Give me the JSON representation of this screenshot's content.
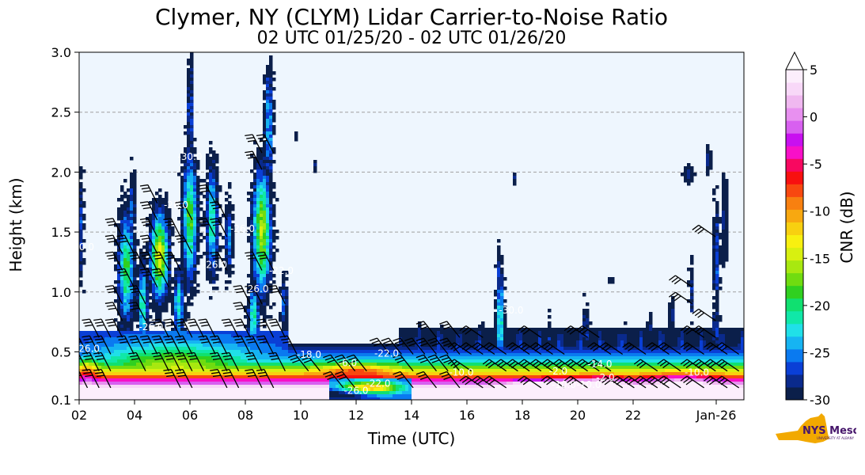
{
  "chart_data": {
    "type": "heatmap",
    "title": "Clymer, NY (CLYM) Lidar Carrier-to-Noise Ratio",
    "subtitle": "02 UTC 01/25/20 - 02 UTC 01/26/20",
    "xlabel": "Time (UTC)",
    "ylabel": "Height (km)",
    "xlim": [
      2,
      26
    ],
    "ylim": [
      0.1,
      3.0
    ],
    "x_ticks": [
      {
        "value": 2,
        "label": "02"
      },
      {
        "value": 4,
        "label": "04"
      },
      {
        "value": 6,
        "label": "06"
      },
      {
        "value": 8,
        "label": "08"
      },
      {
        "value": 10,
        "label": "10"
      },
      {
        "value": 12,
        "label": "12"
      },
      {
        "value": 14,
        "label": "14"
      },
      {
        "value": 16,
        "label": "16"
      },
      {
        "value": 18,
        "label": "18"
      },
      {
        "value": 20,
        "label": "20"
      },
      {
        "value": 22,
        "label": "22"
      },
      {
        "value": 25,
        "label": "Jan-26"
      }
    ],
    "y_ticks": [
      {
        "value": 0.1,
        "label": "0.1"
      },
      {
        "value": 0.5,
        "label": "0.5"
      },
      {
        "value": 1.0,
        "label": "1.0"
      },
      {
        "value": 1.5,
        "label": "1.5"
      },
      {
        "value": 2.0,
        "label": "2.0"
      },
      {
        "value": 2.5,
        "label": "2.5"
      },
      {
        "value": 3.0,
        "label": "3.0"
      }
    ],
    "grid": "horizontal dashed",
    "colorbar": {
      "label": "CNR (dB)",
      "range": [
        -30,
        5
      ],
      "ticks": [
        {
          "value": 5,
          "label": "5"
        },
        {
          "value": 0,
          "label": "0"
        },
        {
          "value": -5,
          "label": "-5"
        },
        {
          "value": -10,
          "label": "-10"
        },
        {
          "value": -15,
          "label": "-15"
        },
        {
          "value": -20,
          "label": "-20"
        },
        {
          "value": -25,
          "label": "-25"
        },
        {
          "value": -30,
          "label": "-30"
        }
      ],
      "colors": [
        "#0b1f4a",
        "#0a2a8c",
        "#0a3fd6",
        "#0a7af0",
        "#16b4f2",
        "#20e0e8",
        "#10e8a8",
        "#10e070",
        "#30d020",
        "#70dc10",
        "#a8e810",
        "#d8f010",
        "#f8f010",
        "#f8d010",
        "#f8a810",
        "#f88010",
        "#f84810",
        "#f81010",
        "#f80860",
        "#f810c8",
        "#c810f0",
        "#d860f0",
        "#e890f0",
        "#f0b8f0",
        "#f8d8f8",
        "#fceefc"
      ],
      "extend": "max"
    },
    "background_color": "#eef6fe",
    "contour_labels": [
      {
        "text": "-30.0",
        "x": 2.1,
        "y": 1.35
      },
      {
        "text": "-26.0",
        "x": 2.3,
        "y": 0.5
      },
      {
        "text": "-26.0",
        "x": 4.6,
        "y": 0.68
      },
      {
        "text": "-30.0",
        "x": 6.0,
        "y": 2.1
      },
      {
        "text": "-26.0",
        "x": 5.5,
        "y": 1.7
      },
      {
        "text": "-26.0",
        "x": 6.9,
        "y": 1.2
      },
      {
        "text": "-26.0",
        "x": 7.9,
        "y": 1.5
      },
      {
        "text": "-26.0",
        "x": 8.4,
        "y": 1.0
      },
      {
        "text": "-22.0",
        "x": 9.3,
        "y": 1.15
      },
      {
        "text": "-18.0",
        "x": 10.3,
        "y": 0.45
      },
      {
        "text": "-6.0",
        "x": 11.7,
        "y": 0.38
      },
      {
        "text": "-22.0",
        "x": 13.1,
        "y": 0.46
      },
      {
        "text": "-26.0",
        "x": 12.0,
        "y": 0.15
      },
      {
        "text": "-22.0",
        "x": 12.8,
        "y": 0.21
      },
      {
        "text": "-10.0",
        "x": 15.8,
        "y": 0.3
      },
      {
        "text": "-30.0",
        "x": 17.6,
        "y": 0.82
      },
      {
        "text": "-2.0",
        "x": 19.3,
        "y": 0.31
      },
      {
        "text": "-10.0",
        "x": 19.5,
        "y": 0.2
      },
      {
        "text": "-14.0",
        "x": 20.8,
        "y": 0.37
      },
      {
        "text": "-10.0",
        "x": 20.4,
        "y": 0.2
      },
      {
        "text": "-2.0",
        "x": 21.0,
        "y": 0.26
      },
      {
        "text": "-10.0",
        "x": 24.3,
        "y": 0.3
      }
    ]
  },
  "logo": {
    "text": "NYS Mesonet",
    "subtext": "UNIVERSITY AT ALBANY",
    "colors": {
      "state": "#f2a900",
      "brand": "#46166b"
    }
  }
}
